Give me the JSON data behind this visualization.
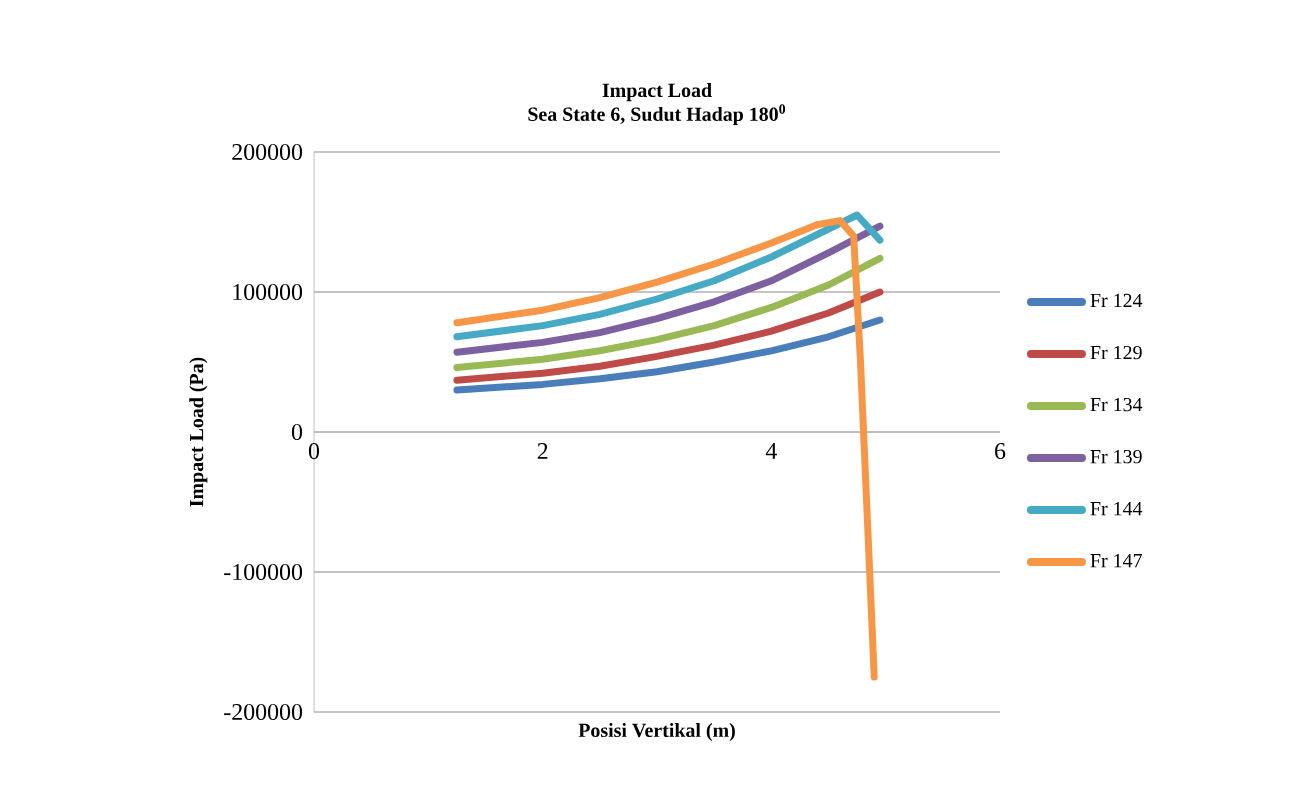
{
  "chart_data": {
    "type": "line",
    "title": "Impact Load",
    "subtitle": "Sea State 6, Sudut Hadap 180$^{0}$",
    "xlabel": "Posisi Vertikal (m)",
    "ylabel": "Impact Load (Pa)",
    "xlim": [
      0,
      6
    ],
    "xticks": [
      0,
      2,
      4,
      6
    ],
    "ylim": [
      -200000,
      200000
    ],
    "yticks": [
      -200000,
      -100000,
      0,
      100000,
      200000
    ],
    "grid": "y",
    "legend": "right",
    "marker": "none",
    "line_style": "solid",
    "series": [
      {
        "name": "Fr 124",
        "color": "#4a7ebb",
        "x": [
          1.25,
          2,
          2.5,
          3,
          3.5,
          4,
          4.5,
          4.95
        ],
        "values": [
          30000,
          34000,
          38000,
          43000,
          50000,
          58000,
          68000,
          80000
        ]
      },
      {
        "name": "Fr 129",
        "color": "#be4b48",
        "x": [
          1.25,
          2,
          2.5,
          3,
          3.5,
          4,
          4.5,
          4.95
        ],
        "values": [
          37000,
          42000,
          47000,
          54000,
          62000,
          72000,
          85000,
          100000
        ]
      },
      {
        "name": "Fr 134",
        "color": "#98b954",
        "x": [
          1.25,
          2,
          2.5,
          3,
          3.5,
          4,
          4.5,
          4.95
        ],
        "values": [
          46000,
          52000,
          58000,
          66000,
          76000,
          89000,
          105000,
          124000
        ]
      },
      {
        "name": "Fr 139",
        "color": "#7d60a0",
        "x": [
          1.25,
          2,
          2.5,
          3,
          3.5,
          4,
          4.5,
          4.95
        ],
        "values": [
          57000,
          64000,
          71000,
          81000,
          93000,
          108000,
          128000,
          147000
        ]
      },
      {
        "name": "Fr 144",
        "color": "#46aac5",
        "x": [
          1.25,
          2,
          2.5,
          3,
          3.5,
          4,
          4.5,
          4.75,
          4.95
        ],
        "values": [
          68000,
          76000,
          84000,
          95000,
          108000,
          125000,
          145000,
          155000,
          137000
        ]
      },
      {
        "name": "Fr 147",
        "color": "#f79646",
        "x": [
          1.25,
          2,
          2.5,
          3,
          3.5,
          4,
          4.4,
          4.6,
          4.72,
          4.78,
          4.9
        ],
        "values": [
          78000,
          87000,
          96000,
          107000,
          120000,
          135000,
          148000,
          151000,
          140000,
          50000,
          -175000
        ]
      }
    ]
  }
}
